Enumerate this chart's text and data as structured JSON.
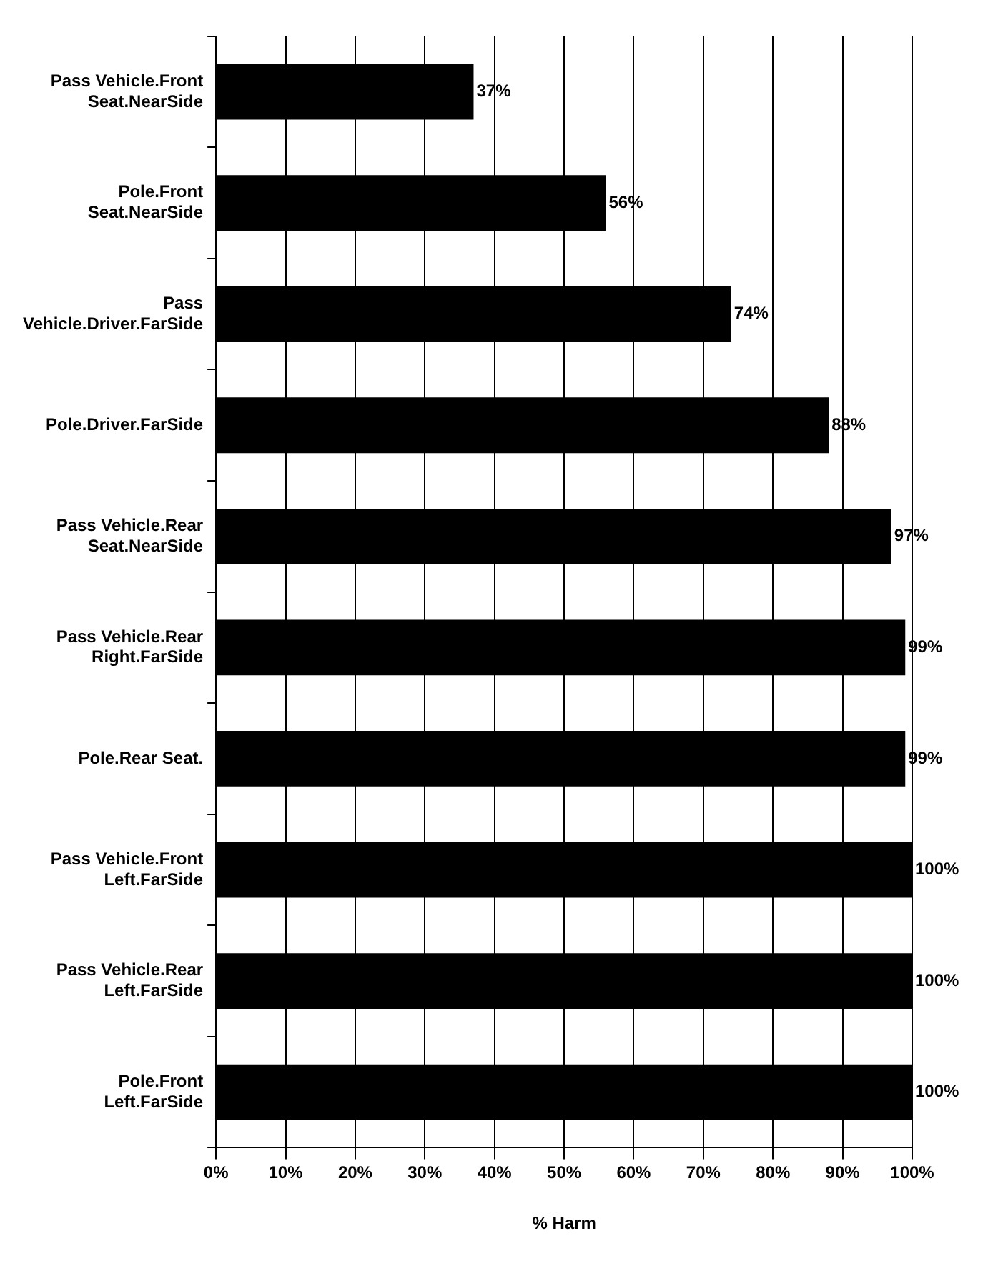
{
  "chart_data": {
    "type": "bar",
    "orientation": "horizontal",
    "xlabel": "% Harm",
    "categories": [
      "Pass Vehicle.Front Seat.NearSide",
      "Pole.Front Seat.NearSide",
      "Pass Vehicle.Driver.FarSide",
      "Pole.Driver.FarSide",
      "Pass Vehicle.Rear Seat.NearSide",
      "Pass Vehicle.Rear Right.FarSide",
      "Pole.Rear Seat.",
      "Pass Vehicle.Front Left.FarSide",
      "Pass Vehicle.Rear Left.FarSide",
      "Pole.Front Left.FarSide"
    ],
    "values": [
      37,
      56,
      74,
      88,
      97,
      99,
      99,
      100,
      100,
      100
    ],
    "value_labels": [
      "37%",
      "56%",
      "74%",
      "88%",
      "97%",
      "99%",
      "99%",
      "100%",
      "100%",
      "100%"
    ],
    "color": "#000000",
    "xlim": [
      0,
      100
    ],
    "xticks": [
      {
        "value": 0,
        "label": "0%"
      },
      {
        "value": 10,
        "label": "10%"
      },
      {
        "value": 20,
        "label": "20%"
      },
      {
        "value": 30,
        "label": "30%"
      },
      {
        "value": 40,
        "label": "40%"
      },
      {
        "value": 50,
        "label": "50%"
      },
      {
        "value": 60,
        "label": "60%"
      },
      {
        "value": 70,
        "label": "70%"
      },
      {
        "value": 80,
        "label": "80%"
      },
      {
        "value": 90,
        "label": "90%"
      },
      {
        "value": 100,
        "label": "100%"
      }
    ],
    "grid": "x",
    "legend": false
  }
}
